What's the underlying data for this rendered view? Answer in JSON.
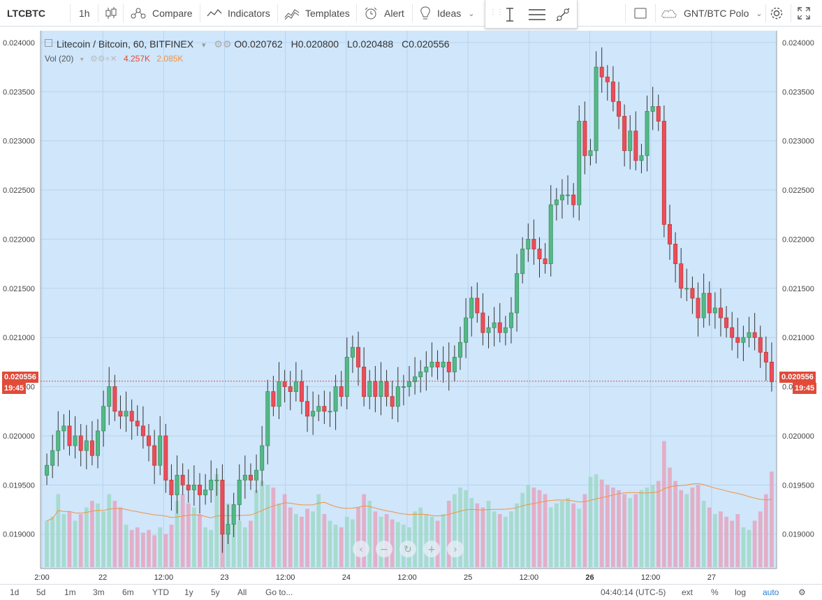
{
  "toolbar": {
    "symbol": "LTCBTC",
    "interval": "1h",
    "compare": "Compare",
    "indicators": "Indicators",
    "templates": "Templates",
    "alert": "Alert",
    "ideas": "Ideas",
    "watch_symbol": "GNT/BTC Polo"
  },
  "legend": {
    "title": "Litecoin / Bitcoin, 60, BITFINEX",
    "open": "O0.020762",
    "high": "H0.020800",
    "low": "L0.020488",
    "close": "C0.020556",
    "vol_label": "Vol (20)",
    "vol_value": "4.257K",
    "vol_ma": "2.085K"
  },
  "price_tag": {
    "value": "0.020556",
    "time": "19:45"
  },
  "colors": {
    "up": "#53b987",
    "down": "#eb4d5c",
    "up_vol": "#9fd8c5",
    "down_vol": "#e5a4bd",
    "ma": "#f5913a",
    "bg": "#cfe6fb"
  },
  "bottombar": {
    "ranges": [
      "1d",
      "5d",
      "1m",
      "3m",
      "6m",
      "YTD",
      "1y",
      "5y",
      "All"
    ],
    "goto": "Go to...",
    "clock": "04:40:14 (UTC-5)",
    "ext": "ext",
    "pct": "%",
    "log": "log",
    "auto": "auto"
  },
  "chart_data": {
    "type": "candlestick",
    "title": "Litecoin / Bitcoin, 60, BITFINEX",
    "ylim": [
      0.01865,
      0.02412
    ],
    "y_ticks": [
      "0.024000",
      "0.023500",
      "0.023000",
      "0.022500",
      "0.022000",
      "0.021500",
      "0.021000",
      "0.020500",
      "0.020000",
      "0.019500",
      "0.019000"
    ],
    "x_ticks": [
      "2:00",
      "22",
      "12:00",
      "23",
      "12:00",
      "24",
      "12:00",
      "25",
      "12:00",
      "26",
      "12:00",
      "27"
    ],
    "current_price": 0.020556,
    "close_series": [
      0.0197,
      0.01985,
      0.02005,
      0.0201,
      0.0199,
      0.02,
      0.01985,
      0.01995,
      0.0198,
      0.02005,
      0.0203,
      0.0205,
      0.02025,
      0.0202,
      0.02025,
      0.02015,
      0.0201,
      0.02,
      0.0199,
      0.0197,
      0.02,
      0.01955,
      0.0194,
      0.0196,
      0.0195,
      0.01945,
      0.0195,
      0.0194,
      0.01945,
      0.01955,
      0.01955,
      0.019,
      0.0191,
      0.0193,
      0.01955,
      0.0196,
      0.01955,
      0.01965,
      0.0199,
      0.02045,
      0.0203,
      0.02055,
      0.0205,
      0.02045,
      0.02055,
      0.02035,
      0.0202,
      0.02025,
      0.0203,
      0.02025,
      0.02025,
      0.0205,
      0.0204,
      0.0208,
      0.0209,
      0.0207,
      0.0204,
      0.02055,
      0.0204,
      0.02055,
      0.0204,
      0.0203,
      0.0205,
      0.0205,
      0.02055,
      0.0206,
      0.02065,
      0.0207,
      0.02075,
      0.0207,
      0.02075,
      0.02065,
      0.0208,
      0.02095,
      0.0212,
      0.0214,
      0.02125,
      0.02105,
      0.0211,
      0.02115,
      0.02105,
      0.0211,
      0.02125,
      0.02165,
      0.0219,
      0.022,
      0.0219,
      0.0218,
      0.02175,
      0.02235,
      0.0224,
      0.02245,
      0.02245,
      0.02235,
      0.0232,
      0.02285,
      0.0229,
      0.02375,
      0.02365,
      0.0236,
      0.0234,
      0.02325,
      0.0229,
      0.0231,
      0.0228,
      0.02285,
      0.0233,
      0.02335,
      0.0232,
      0.02215,
      0.02195,
      0.02175,
      0.0215,
      0.0215,
      0.0214,
      0.0212,
      0.02145,
      0.02125,
      0.0213,
      0.0212,
      0.0211,
      0.021,
      0.02095,
      0.021,
      0.02105,
      0.021,
      0.02085,
      0.02075,
      0.02055
    ],
    "volume_scale": "relative",
    "volume_series": [
      0.35,
      0.38,
      0.55,
      0.4,
      0.42,
      0.35,
      0.4,
      0.45,
      0.5,
      0.48,
      0.42,
      0.55,
      0.5,
      0.45,
      0.32,
      0.28,
      0.3,
      0.26,
      0.28,
      0.24,
      0.3,
      0.25,
      0.32,
      0.5,
      0.55,
      0.48,
      0.45,
      0.4,
      0.3,
      0.28,
      0.7,
      0.62,
      0.48,
      0.45,
      0.35,
      0.3,
      0.35,
      0.58,
      0.65,
      0.62,
      0.6,
      0.48,
      0.55,
      0.45,
      0.4,
      0.38,
      0.44,
      0.42,
      0.55,
      0.4,
      0.35,
      0.32,
      0.3,
      0.38,
      0.36,
      0.45,
      0.55,
      0.5,
      0.42,
      0.38,
      0.4,
      0.36,
      0.34,
      0.32,
      0.3,
      0.42,
      0.45,
      0.4,
      0.38,
      0.35,
      0.4,
      0.5,
      0.55,
      0.6,
      0.58,
      0.52,
      0.48,
      0.45,
      0.5,
      0.42,
      0.4,
      0.38,
      0.42,
      0.48,
      0.56,
      0.62,
      0.6,
      0.58,
      0.55,
      0.45,
      0.48,
      0.5,
      0.52,
      0.48,
      0.44,
      0.55,
      0.68,
      0.7,
      0.66,
      0.62,
      0.6,
      0.58,
      0.55,
      0.52,
      0.55,
      0.58,
      0.6,
      0.62,
      0.65,
      0.95,
      0.75,
      0.65,
      0.58,
      0.55,
      0.6,
      0.62,
      0.5,
      0.45,
      0.4,
      0.42,
      0.38,
      0.35,
      0.4,
      0.3,
      0.28,
      0.35,
      0.42,
      0.55,
      0.72
    ]
  }
}
